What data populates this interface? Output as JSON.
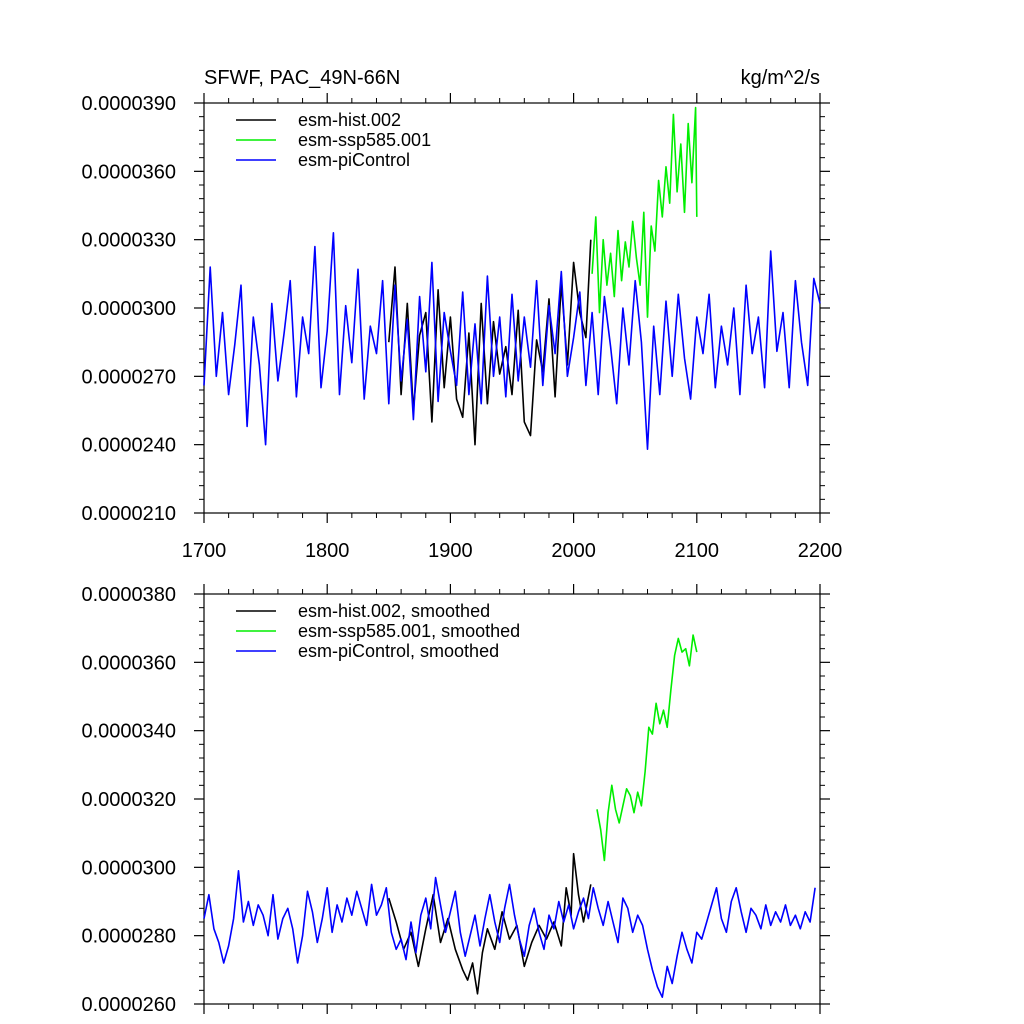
{
  "chart_data": [
    {
      "type": "line",
      "title_left": "SFWF, PAC_49N-66N",
      "title_right": "kg/m^2/s",
      "xlim": [
        1700,
        2200
      ],
      "ylim": [
        2.1e-05,
        3.9e-05
      ],
      "x_ticks": [
        1700,
        1800,
        1900,
        2000,
        2100,
        2200
      ],
      "x_tick_labels": [
        "1700",
        "1800",
        "1900",
        "2000",
        "2100",
        "2200"
      ],
      "y_ticks": [
        2.1e-05,
        2.4e-05,
        2.7e-05,
        3e-05,
        3.3e-05,
        3.6e-05,
        3.9e-05
      ],
      "y_tick_labels": [
        "0.0000210",
        "0.0000240",
        "0.0000270",
        "0.0000300",
        "0.0000330",
        "0.0000360",
        "0.0000390"
      ],
      "series": [
        {
          "name": "esm-hist.002",
          "color": "#000000",
          "x": [
            1850,
            1855,
            1860,
            1865,
            1870,
            1875,
            1880,
            1885,
            1890,
            1895,
            1900,
            1905,
            1910,
            1915,
            1920,
            1925,
            1930,
            1935,
            1940,
            1945,
            1950,
            1955,
            1960,
            1965,
            1970,
            1975,
            1980,
            1985,
            1990,
            1995,
            2000,
            2005,
            2010,
            2014
          ],
          "values": [
            2.85e-05,
            3.18e-05,
            2.62e-05,
            3.02e-05,
            2.55e-05,
            2.88e-05,
            2.98e-05,
            2.5e-05,
            3.08e-05,
            2.65e-05,
            2.96e-05,
            2.6e-05,
            2.52e-05,
            2.89e-05,
            2.4e-05,
            3.02e-05,
            2.58e-05,
            2.94e-05,
            2.71e-05,
            2.83e-05,
            2.62e-05,
            2.99e-05,
            2.5e-05,
            2.44e-05,
            2.86e-05,
            2.72e-05,
            3.04e-05,
            2.61e-05,
            3.11e-05,
            2.75e-05,
            3.2e-05,
            2.98e-05,
            2.87e-05,
            3.3e-05
          ]
        },
        {
          "name": "esm-ssp585.001",
          "color": "#00ee00",
          "x": [
            2015,
            2018,
            2021,
            2024,
            2027,
            2030,
            2033,
            2036,
            2039,
            2042,
            2045,
            2048,
            2051,
            2054,
            2057,
            2060,
            2063,
            2066,
            2069,
            2072,
            2075,
            2078,
            2081,
            2084,
            2087,
            2090,
            2093,
            2096,
            2099,
            2100
          ],
          "values": [
            3.15e-05,
            3.4e-05,
            2.98e-05,
            3.3e-05,
            3.1e-05,
            3.24e-05,
            3.05e-05,
            3.34e-05,
            3.12e-05,
            3.29e-05,
            3.18e-05,
            3.38e-05,
            3.22e-05,
            3.1e-05,
            3.42e-05,
            2.96e-05,
            3.36e-05,
            3.25e-05,
            3.56e-05,
            3.4e-05,
            3.62e-05,
            3.46e-05,
            3.85e-05,
            3.51e-05,
            3.72e-05,
            3.42e-05,
            3.81e-05,
            3.55e-05,
            3.88e-05,
            3.4e-05
          ]
        },
        {
          "name": "esm-piControl",
          "color": "#0000ff",
          "x": [
            1700,
            1705,
            1710,
            1715,
            1720,
            1725,
            1730,
            1735,
            1740,
            1745,
            1750,
            1755,
            1760,
            1765,
            1770,
            1775,
            1780,
            1785,
            1790,
            1795,
            1800,
            1805,
            1810,
            1815,
            1820,
            1825,
            1830,
            1835,
            1840,
            1845,
            1850,
            1855,
            1860,
            1865,
            1870,
            1875,
            1880,
            1885,
            1890,
            1895,
            1900,
            1905,
            1910,
            1915,
            1920,
            1925,
            1930,
            1935,
            1940,
            1945,
            1950,
            1955,
            1960,
            1965,
            1970,
            1975,
            1980,
            1985,
            1990,
            1995,
            2000,
            2005,
            2010,
            2015,
            2020,
            2025,
            2030,
            2035,
            2040,
            2045,
            2050,
            2055,
            2060,
            2065,
            2070,
            2075,
            2080,
            2085,
            2090,
            2095,
            2100,
            2105,
            2110,
            2115,
            2120,
            2125,
            2130,
            2135,
            2140,
            2145,
            2150,
            2155,
            2160,
            2165,
            2170,
            2175,
            2180,
            2185,
            2190,
            2195,
            2200
          ],
          "values": [
            2.66e-05,
            3.18e-05,
            2.7e-05,
            2.98e-05,
            2.62e-05,
            2.84e-05,
            3.1e-05,
            2.48e-05,
            2.96e-05,
            2.75e-05,
            2.4e-05,
            3.02e-05,
            2.68e-05,
            2.89e-05,
            3.12e-05,
            2.61e-05,
            2.96e-05,
            2.8e-05,
            3.27e-05,
            2.65e-05,
            2.9e-05,
            3.33e-05,
            2.62e-05,
            3.01e-05,
            2.76e-05,
            3.17e-05,
            2.6e-05,
            2.92e-05,
            2.8e-05,
            3.12e-05,
            2.58e-05,
            3.1e-05,
            2.68e-05,
            2.95e-05,
            2.51e-05,
            3.05e-05,
            2.72e-05,
            3.2e-05,
            2.59e-05,
            2.98e-05,
            2.81e-05,
            2.66e-05,
            3.07e-05,
            2.62e-05,
            2.93e-05,
            2.58e-05,
            3.14e-05,
            2.7e-05,
            2.96e-05,
            2.61e-05,
            3.06e-05,
            2.68e-05,
            2.96e-05,
            2.74e-05,
            3.12e-05,
            2.66e-05,
            3.01e-05,
            2.8e-05,
            3.16e-05,
            2.7e-05,
            2.87e-05,
            3.07e-05,
            2.66e-05,
            2.98e-05,
            2.62e-05,
            3.05e-05,
            2.83e-05,
            2.58e-05,
            3e-05,
            2.75e-05,
            3.12e-05,
            2.85e-05,
            2.38e-05,
            2.92e-05,
            2.62e-05,
            3.03e-05,
            2.7e-05,
            3.06e-05,
            2.78e-05,
            2.6e-05,
            2.96e-05,
            2.8e-05,
            3.06e-05,
            2.65e-05,
            2.92e-05,
            2.75e-05,
            3e-05,
            2.62e-05,
            3.1e-05,
            2.8e-05,
            2.96e-05,
            2.65e-05,
            3.25e-05,
            2.81e-05,
            2.98e-05,
            2.65e-05,
            3.12e-05,
            2.85e-05,
            2.66e-05,
            3.13e-05,
            3.02e-05
          ]
        }
      ]
    },
    {
      "type": "line",
      "xlim": [
        1700,
        2200
      ],
      "ylim": [
        2.6e-05,
        3.8e-05
      ],
      "x_ticks": [
        1700,
        1800,
        1900,
        2000,
        2100,
        2200
      ],
      "y_ticks": [
        2.6e-05,
        2.8e-05,
        3e-05,
        3.2e-05,
        3.4e-05,
        3.6e-05,
        3.8e-05
      ],
      "y_tick_labels": [
        "0.0000260",
        "0.0000280",
        "0.0000300",
        "0.0000320",
        "0.0000340",
        "0.0000360",
        "0.0000380"
      ],
      "series": [
        {
          "name": "esm-hist.002, smoothed",
          "color": "#000000",
          "x": [
            1850,
            1856,
            1862,
            1868,
            1874,
            1880,
            1886,
            1892,
            1898,
            1904,
            1910,
            1914,
            1918,
            1922,
            1926,
            1930,
            1936,
            1942,
            1948,
            1954,
            1960,
            1966,
            1972,
            1978,
            1984,
            1990,
            1994,
            1998,
            2000,
            2004,
            2008,
            2014
          ],
          "values": [
            2.91e-05,
            2.84e-05,
            2.76e-05,
            2.81e-05,
            2.71e-05,
            2.82e-05,
            2.92e-05,
            2.78e-05,
            2.85e-05,
            2.76e-05,
            2.7e-05,
            2.67e-05,
            2.72e-05,
            2.63e-05,
            2.75e-05,
            2.82e-05,
            2.76e-05,
            2.87e-05,
            2.79e-05,
            2.83e-05,
            2.71e-05,
            2.78e-05,
            2.83e-05,
            2.79e-05,
            2.84e-05,
            2.77e-05,
            2.94e-05,
            2.86e-05,
            3.04e-05,
            2.92e-05,
            2.84e-05,
            2.95e-05
          ]
        },
        {
          "name": "esm-ssp585.001, smoothed",
          "color": "#00ee00",
          "x": [
            2019,
            2022,
            2025,
            2028,
            2031,
            2034,
            2037,
            2040,
            2043,
            2046,
            2049,
            2052,
            2055,
            2058,
            2061,
            2064,
            2067,
            2070,
            2073,
            2076,
            2079,
            2082,
            2085,
            2088,
            2091,
            2094,
            2097,
            2100
          ],
          "values": [
            3.17e-05,
            3.11e-05,
            3.02e-05,
            3.16e-05,
            3.24e-05,
            3.17e-05,
            3.13e-05,
            3.18e-05,
            3.23e-05,
            3.21e-05,
            3.16e-05,
            3.22e-05,
            3.18e-05,
            3.28e-05,
            3.41e-05,
            3.39e-05,
            3.48e-05,
            3.42e-05,
            3.46e-05,
            3.41e-05,
            3.52e-05,
            3.62e-05,
            3.67e-05,
            3.63e-05,
            3.64e-05,
            3.59e-05,
            3.68e-05,
            3.63e-05
          ]
        },
        {
          "name": "esm-piControl, smoothed",
          "color": "#0000ff",
          "x": [
            1700,
            1704,
            1708,
            1712,
            1716,
            1720,
            1724,
            1728,
            1732,
            1736,
            1740,
            1744,
            1748,
            1752,
            1756,
            1760,
            1764,
            1768,
            1772,
            1776,
            1780,
            1784,
            1788,
            1792,
            1796,
            1800,
            1804,
            1808,
            1812,
            1816,
            1820,
            1824,
            1828,
            1832,
            1836,
            1840,
            1844,
            1848,
            1852,
            1856,
            1860,
            1864,
            1868,
            1872,
            1876,
            1880,
            1884,
            1888,
            1892,
            1896,
            1900,
            1904,
            1908,
            1912,
            1916,
            1920,
            1924,
            1928,
            1932,
            1936,
            1940,
            1944,
            1948,
            1952,
            1956,
            1960,
            1964,
            1968,
            1972,
            1976,
            1980,
            1984,
            1988,
            1992,
            1996,
            2000,
            2004,
            2008,
            2012,
            2016,
            2020,
            2024,
            2028,
            2032,
            2036,
            2040,
            2044,
            2048,
            2052,
            2056,
            2060,
            2064,
            2068,
            2072,
            2076,
            2080,
            2084,
            2088,
            2092,
            2096,
            2100,
            2104,
            2108,
            2112,
            2116,
            2120,
            2124,
            2128,
            2132,
            2136,
            2140,
            2144,
            2148,
            2152,
            2156,
            2160,
            2164,
            2168,
            2172,
            2176,
            2180,
            2184,
            2188,
            2192,
            2196
          ],
          "values": [
            2.85e-05,
            2.92e-05,
            2.82e-05,
            2.78e-05,
            2.72e-05,
            2.77e-05,
            2.85e-05,
            2.99e-05,
            2.84e-05,
            2.9e-05,
            2.83e-05,
            2.89e-05,
            2.86e-05,
            2.8e-05,
            2.92e-05,
            2.79e-05,
            2.85e-05,
            2.88e-05,
            2.82e-05,
            2.72e-05,
            2.8e-05,
            2.93e-05,
            2.87e-05,
            2.78e-05,
            2.85e-05,
            2.94e-05,
            2.81e-05,
            2.89e-05,
            2.84e-05,
            2.91e-05,
            2.86e-05,
            2.93e-05,
            2.88e-05,
            2.83e-05,
            2.95e-05,
            2.86e-05,
            2.89e-05,
            2.94e-05,
            2.81e-05,
            2.76e-05,
            2.79e-05,
            2.73e-05,
            2.84e-05,
            2.75e-05,
            2.86e-05,
            2.91e-05,
            2.82e-05,
            2.97e-05,
            2.89e-05,
            2.81e-05,
            2.87e-05,
            2.93e-05,
            2.81e-05,
            2.74e-05,
            2.8e-05,
            2.86e-05,
            2.77e-05,
            2.85e-05,
            2.92e-05,
            2.84e-05,
            2.78e-05,
            2.88e-05,
            2.95e-05,
            2.86e-05,
            2.79e-05,
            2.74e-05,
            2.83e-05,
            2.88e-05,
            2.81e-05,
            2.76e-05,
            2.86e-05,
            2.82e-05,
            2.9e-05,
            2.84e-05,
            2.89e-05,
            2.82e-05,
            2.87e-05,
            2.91e-05,
            2.85e-05,
            2.94e-05,
            2.88e-05,
            2.83e-05,
            2.9e-05,
            2.84e-05,
            2.78e-05,
            2.91e-05,
            2.88e-05,
            2.81e-05,
            2.86e-05,
            2.83e-05,
            2.76e-05,
            2.7e-05,
            2.65e-05,
            2.62e-05,
            2.71e-05,
            2.66e-05,
            2.74e-05,
            2.81e-05,
            2.76e-05,
            2.72e-05,
            2.81e-05,
            2.79e-05,
            2.84e-05,
            2.89e-05,
            2.94e-05,
            2.85e-05,
            2.81e-05,
            2.9e-05,
            2.94e-05,
            2.87e-05,
            2.81e-05,
            2.88e-05,
            2.86e-05,
            2.82e-05,
            2.89e-05,
            2.83e-05,
            2.87e-05,
            2.84e-05,
            2.89e-05,
            2.83e-05,
            2.86e-05,
            2.82e-05,
            2.87e-05,
            2.84e-05,
            2.94e-05
          ]
        }
      ]
    }
  ]
}
